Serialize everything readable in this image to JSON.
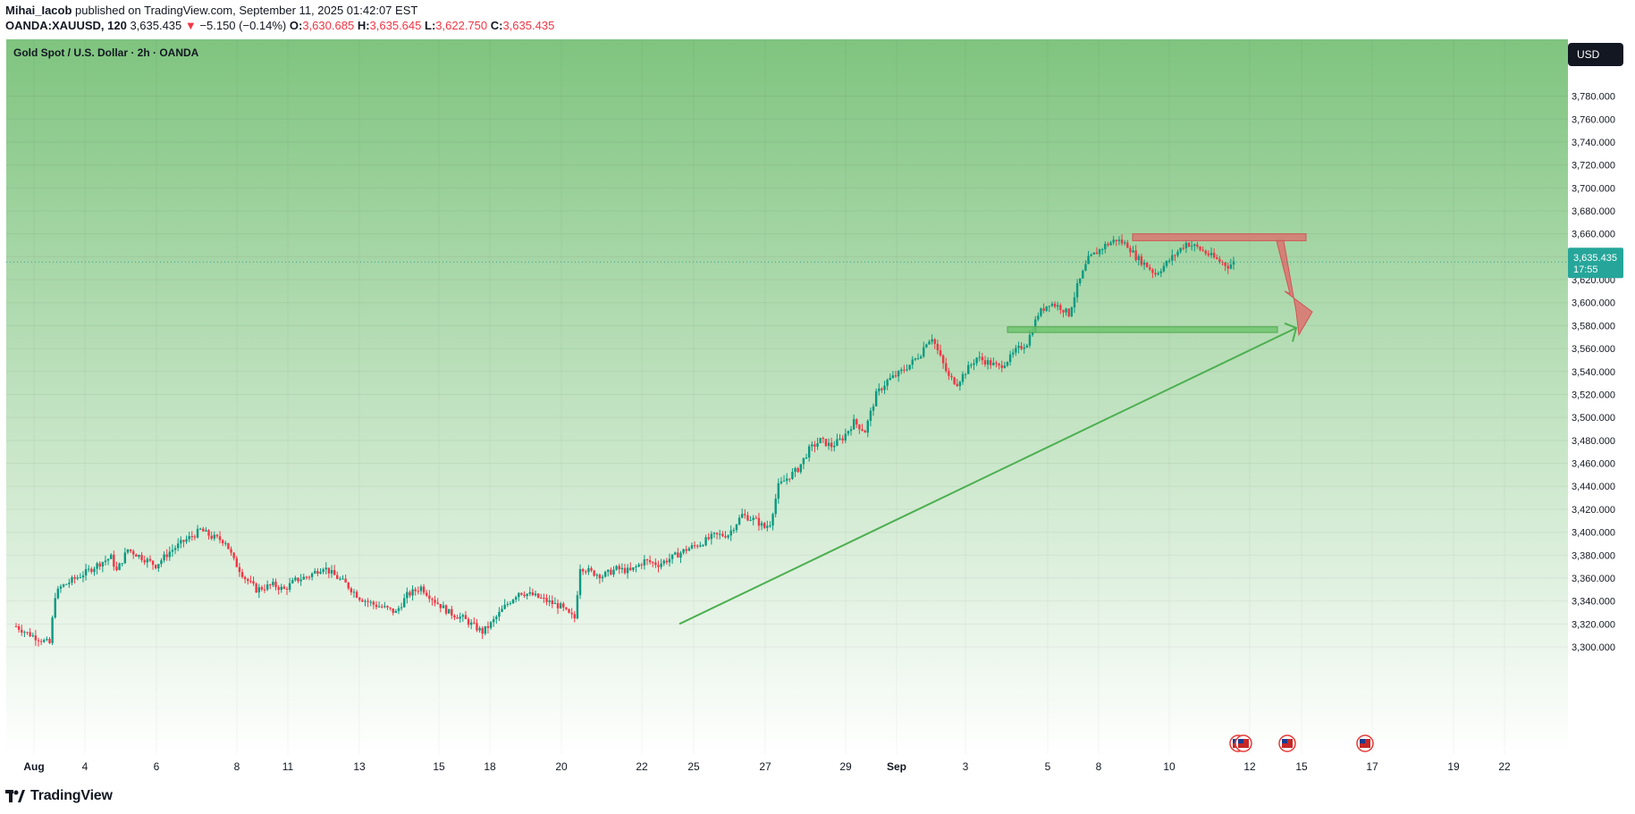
{
  "header": {
    "author": "Mihai_Iacob",
    "published_text": " published on TradingView.com, September 11, 2025 01:42:07 EST",
    "symbol": "OANDA:XAUUSD, 120",
    "last": "3,635.435",
    "change_arrow": "▼",
    "change": "−5.150 (−0.14%)",
    "o_label": "O:",
    "o_value": "3,630.685",
    "h_label": "H:",
    "h_value": "3,635.645",
    "l_label": "L:",
    "l_value": "3,622.750",
    "c_label": "C:",
    "c_value": "3,635.435"
  },
  "chart": {
    "title": "Gold Spot / U.S. Dollar · 2h · OANDA",
    "currency_button": "USD",
    "price_tag": {
      "price": "3,635.435",
      "countdown": "17:55"
    },
    "logo_text": "TradingView"
  },
  "colors": {
    "up": "#089981",
    "down": "#f23645",
    "bg_top": "#7fc47f",
    "bg_bottom": "#ffffff",
    "resistance": "#e06b6b",
    "support": "#6cc36c",
    "trendline": "#4caf50",
    "tag": "#26a69a"
  },
  "chart_data": {
    "type": "candlestick",
    "title": "Gold Spot / U.S. Dollar · 2h · OANDA",
    "y_axis_ticks": [
      "3,300.000",
      "3,320.000",
      "3,340.000",
      "3,360.000",
      "3,380.000",
      "3,400.000",
      "3,420.000",
      "3,440.000",
      "3,460.000",
      "3,480.000",
      "3,500.000",
      "3,520.000",
      "3,540.000",
      "3,560.000",
      "3,580.000",
      "3,600.000",
      "3,620.000",
      "3,640.000",
      "3,660.000",
      "3,680.000",
      "3,700.000",
      "3,720.000",
      "3,740.000",
      "3,760.000",
      "3,780.000"
    ],
    "x_axis_ticks": [
      "Aug",
      "4",
      "6",
      "8",
      "11",
      "13",
      "15",
      "18",
      "20",
      "22",
      "25",
      "27",
      "29",
      "Sep",
      "3",
      "5",
      "8",
      "10",
      "12",
      "15",
      "17",
      "19",
      "22"
    ],
    "ylim": [
      3300,
      3800
    ],
    "current_price": 3635.435,
    "resistance_zone": [
      3654,
      3660
    ],
    "support_zone": [
      3574,
      3579
    ],
    "trendline": {
      "from": [
        "Aug 22",
        3320
      ],
      "to": [
        "Sep 13",
        3578
      ]
    },
    "projected_move": {
      "from": 3654,
      "to": 3578
    },
    "price_path": [
      [
        0,
        3318
      ],
      [
        4,
        3312
      ],
      [
        10,
        3305
      ],
      [
        12,
        3303
      ],
      [
        14,
        3345
      ],
      [
        16,
        3352
      ],
      [
        20,
        3358
      ],
      [
        25,
        3365
      ],
      [
        30,
        3373
      ],
      [
        34,
        3378
      ],
      [
        36,
        3366
      ],
      [
        40,
        3385
      ],
      [
        45,
        3378
      ],
      [
        50,
        3371
      ],
      [
        55,
        3383
      ],
      [
        60,
        3392
      ],
      [
        64,
        3398
      ],
      [
        66,
        3402
      ],
      [
        70,
        3396
      ],
      [
        75,
        3392
      ],
      [
        78,
        3375
      ],
      [
        82,
        3360
      ],
      [
        86,
        3350
      ],
      [
        92,
        3354
      ],
      [
        96,
        3350
      ],
      [
        100,
        3358
      ],
      [
        105,
        3362
      ],
      [
        110,
        3370
      ],
      [
        113,
        3364
      ],
      [
        118,
        3355
      ],
      [
        123,
        3343
      ],
      [
        128,
        3337
      ],
      [
        132,
        3334
      ],
      [
        136,
        3330
      ],
      [
        140,
        3345
      ],
      [
        145,
        3352
      ],
      [
        150,
        3340
      ],
      [
        155,
        3330
      ],
      [
        160,
        3325
      ],
      [
        164,
        3318
      ],
      [
        167,
        3313
      ],
      [
        170,
        3320
      ],
      [
        175,
        3335
      ],
      [
        180,
        3348
      ],
      [
        185,
        3345
      ],
      [
        190,
        3340
      ],
      [
        195,
        3335
      ],
      [
        198,
        3328
      ],
      [
        200,
        3325
      ],
      [
        202,
        3370
      ],
      [
        206,
        3365
      ],
      [
        210,
        3362
      ],
      [
        215,
        3368
      ],
      [
        220,
        3366
      ],
      [
        225,
        3375
      ],
      [
        230,
        3372
      ],
      [
        235,
        3378
      ],
      [
        240,
        3385
      ],
      [
        245,
        3390
      ],
      [
        250,
        3397
      ],
      [
        255,
        3398
      ],
      [
        260,
        3415
      ],
      [
        265,
        3410
      ],
      [
        268,
        3404
      ],
      [
        270,
        3408
      ],
      [
        273,
        3440
      ],
      [
        276,
        3447
      ],
      [
        280,
        3455
      ],
      [
        284,
        3472
      ],
      [
        288,
        3480
      ],
      [
        292,
        3475
      ],
      [
        296,
        3482
      ],
      [
        300,
        3496
      ],
      [
        304,
        3488
      ],
      [
        308,
        3520
      ],
      [
        312,
        3532
      ],
      [
        316,
        3538
      ],
      [
        320,
        3546
      ],
      [
        324,
        3556
      ],
      [
        326,
        3566
      ],
      [
        328,
        3570
      ],
      [
        331,
        3552
      ],
      [
        334,
        3535
      ],
      [
        337,
        3530
      ],
      [
        340,
        3540
      ],
      [
        344,
        3552
      ],
      [
        348,
        3548
      ],
      [
        352,
        3544
      ],
      [
        356,
        3552
      ],
      [
        358,
        3558
      ],
      [
        362,
        3565
      ],
      [
        366,
        3590
      ],
      [
        370,
        3600
      ],
      [
        374,
        3596
      ],
      [
        377,
        3590
      ],
      [
        380,
        3614
      ],
      [
        384,
        3638
      ],
      [
        386,
        3642
      ],
      [
        390,
        3650
      ],
      [
        394,
        3655
      ],
      [
        398,
        3650
      ],
      [
        401,
        3640
      ],
      [
        405,
        3632
      ],
      [
        408,
        3625
      ],
      [
        411,
        3632
      ],
      [
        415,
        3642
      ],
      [
        419,
        3652
      ],
      [
        423,
        3648
      ],
      [
        427,
        3642
      ],
      [
        431,
        3636
      ],
      [
        434,
        3632
      ],
      [
        436,
        3635
      ]
    ]
  }
}
